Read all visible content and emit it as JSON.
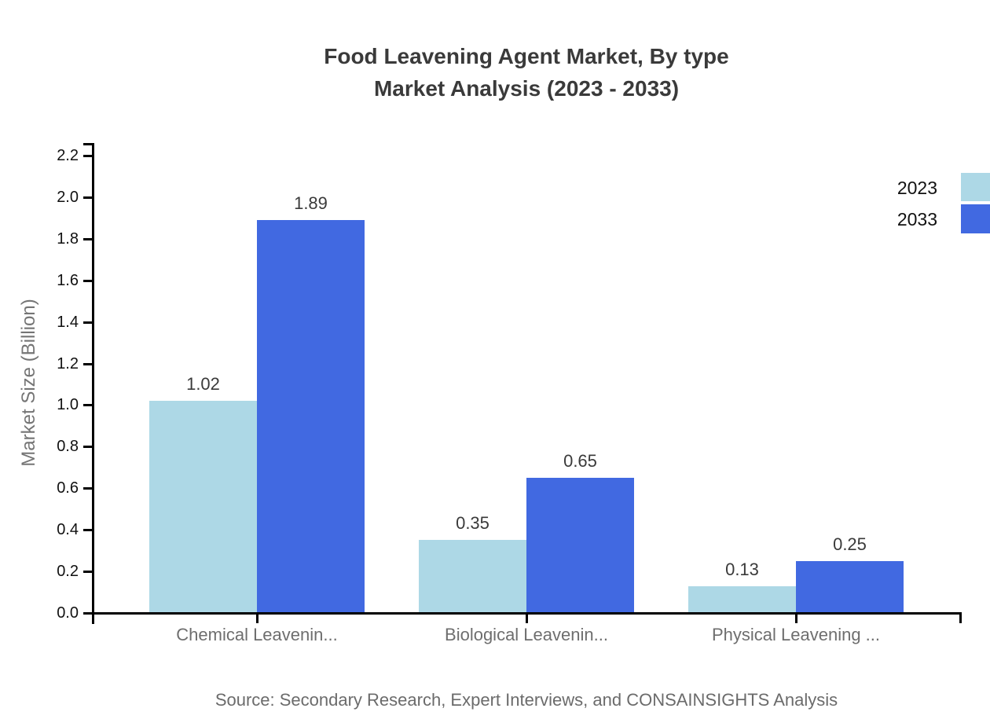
{
  "chart_data": {
    "type": "bar",
    "title_lines": [
      "Food Leavening Agent Market, By type",
      "Market Analysis (2023 - 2033)"
    ],
    "categories": [
      "Chemical Leavenin...",
      "Biological Leavenin...",
      "Physical Leavening ..."
    ],
    "series": [
      {
        "name": "2023",
        "values": [
          1.02,
          0.35,
          0.13
        ],
        "color": "#ADD8E6"
      },
      {
        "name": "2033",
        "values": [
          1.89,
          0.65,
          0.25
        ],
        "color": "#4169E1"
      }
    ],
    "value_labels": [
      [
        "1.02",
        "0.35",
        "0.13"
      ],
      [
        "1.89",
        "0.65",
        "0.25"
      ]
    ],
    "ylabel": "Market Size (Billion)",
    "xlabel": "",
    "ylim": [
      0,
      2.2
    ],
    "ytick_labels": [
      "0.0",
      "0.2",
      "0.4",
      "0.6",
      "0.8",
      "1.0",
      "1.2",
      "1.4",
      "1.6",
      "1.8",
      "2.0",
      "2.2"
    ],
    "grid": false,
    "legend_position": "top-right",
    "legend_entries": [
      "2023",
      "2033"
    ],
    "source": "Source: Secondary Research, Expert Interviews, and CONSAINSIGHTS Analysis",
    "colors": {
      "bar_2023": "#ADD8E6",
      "bar_2033": "#4169E1",
      "axis": "#000000",
      "tick_label": "#111111",
      "title": "#3a3a3a",
      "value_label": "#3a3a3a",
      "category_label": "#6e6e6e",
      "ylabel": "#757575",
      "source": "#6b6b6b",
      "background": "#ffffff"
    }
  }
}
